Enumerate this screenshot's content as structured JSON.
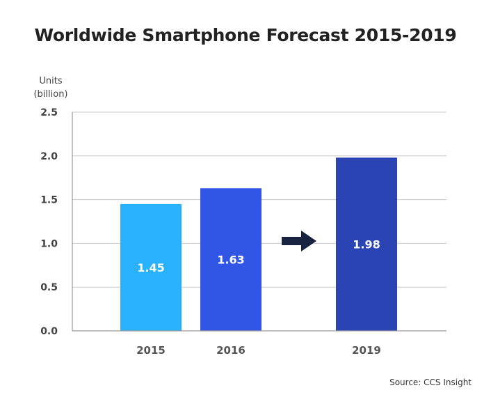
{
  "chart_data": {
    "type": "bar",
    "title": "Worldwide Smartphone Forecast 2015-2019",
    "ylabel_line1": "Units",
    "ylabel_line2": "(billion)",
    "xlabel": "",
    "ylim": [
      0,
      2.5
    ],
    "yticks": [
      {
        "value": 0.0,
        "label": "0.0"
      },
      {
        "value": 0.5,
        "label": "0.5"
      },
      {
        "value": 1.0,
        "label": "1.0"
      },
      {
        "value": 1.5,
        "label": "1.5"
      },
      {
        "value": 2.0,
        "label": "2.0"
      },
      {
        "value": 2.5,
        "label": "2.5"
      }
    ],
    "grid": true,
    "categories": [
      "2015",
      "2016",
      "2019"
    ],
    "values": [
      1.45,
      1.63,
      1.98
    ],
    "value_labels": [
      "1.45",
      "1.63",
      "1.98"
    ],
    "bar_colors": [
      "#29b1fb",
      "#3155e4",
      "#2a44b4"
    ],
    "annotation": {
      "icon": "right-arrow-icon",
      "color": "#172341",
      "between": [
        "2016",
        "2019"
      ]
    },
    "source": "Source: CCS Insight"
  },
  "colors": {
    "grid": "#c8c8c8",
    "axis": "#9a9a9a"
  }
}
